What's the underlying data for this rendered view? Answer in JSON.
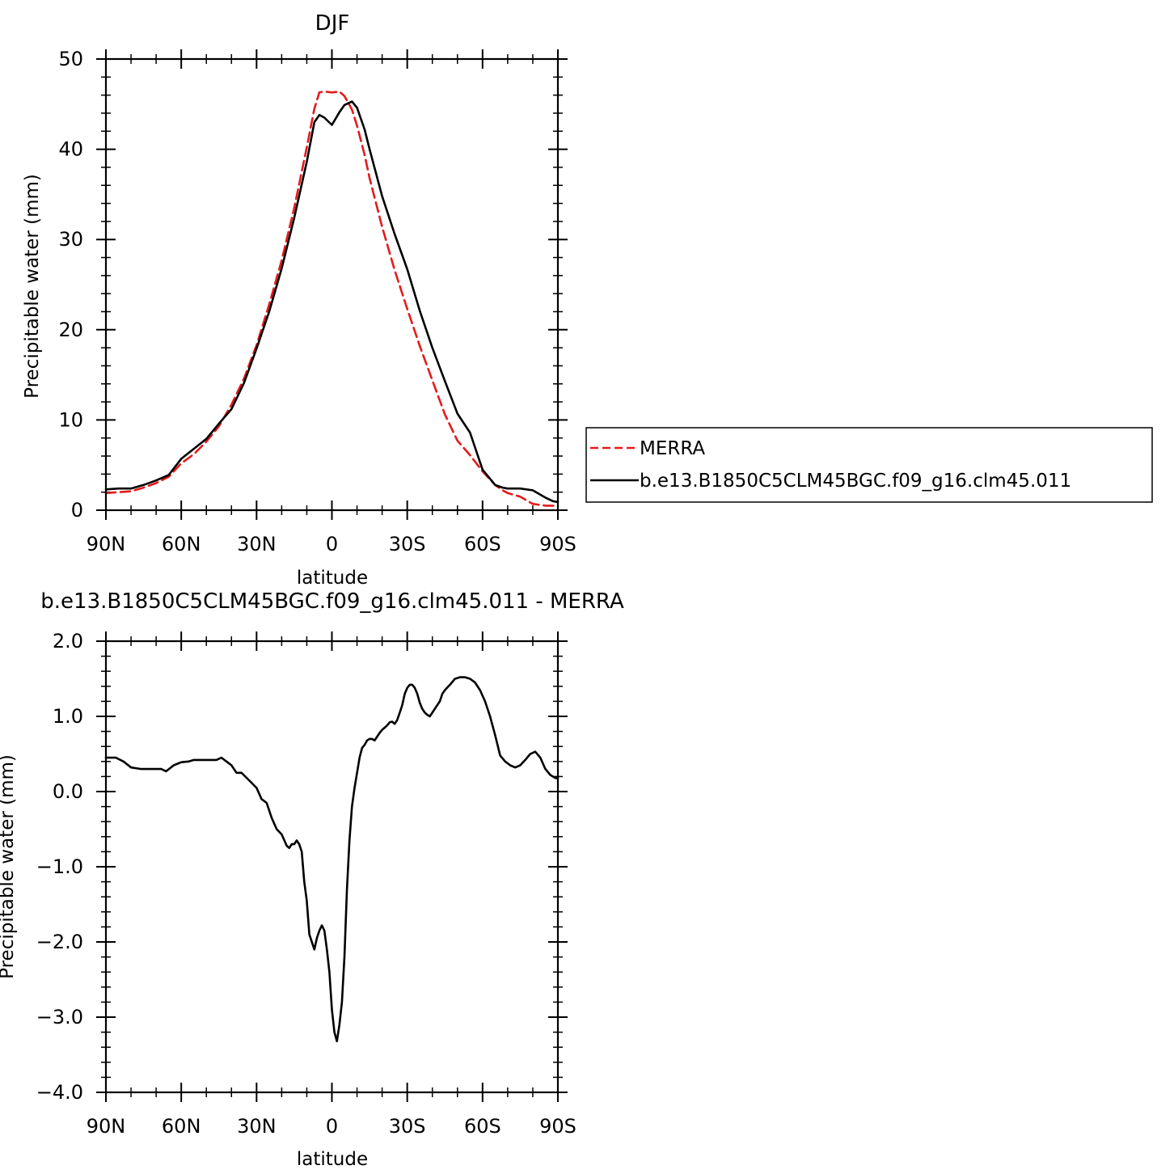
{
  "colors": {
    "merra": "#e41a1c",
    "model": "#000000",
    "axis": "#000000",
    "background": "#ffffff"
  },
  "chart_data": [
    {
      "type": "line",
      "title": "DJF",
      "xlabel": "latitude",
      "ylabel": "Precipitable water (mm)",
      "xlim": [
        -90,
        90
      ],
      "ylim": [
        0,
        50
      ],
      "x_ticks": [
        -90,
        -60,
        -30,
        0,
        30,
        60,
        90
      ],
      "x_tick_labels": [
        "90N",
        "60N",
        "30N",
        "0",
        "30S",
        "60S",
        "90S"
      ],
      "y_ticks": [
        0,
        10,
        20,
        30,
        40,
        50
      ],
      "y_tick_labels": [
        "0",
        "10",
        "20",
        "30",
        "40",
        "50"
      ],
      "grid": false,
      "legend": {
        "position": "right",
        "entries": [
          "MERRA",
          "b.e13.B1850C5CLM45BGC.f09_g16.clm45.011"
        ]
      },
      "series": [
        {
          "name": "MERRA",
          "style": "dashed",
          "color": "#e41a1c",
          "x": [
            -90,
            -80,
            -75,
            -70,
            -65,
            -60,
            -55,
            -50,
            -45,
            -40,
            -35,
            -30,
            -25,
            -20,
            -15,
            -10,
            -7,
            -5,
            -3,
            0,
            3,
            5,
            8,
            10,
            13,
            15,
            20,
            25,
            30,
            35,
            40,
            45,
            50,
            55,
            60,
            65,
            68,
            70,
            75,
            80,
            85,
            88,
            90
          ],
          "y": [
            1.9,
            2.1,
            2.5,
            3.0,
            3.7,
            5.2,
            6.2,
            7.6,
            9.3,
            11.7,
            14.6,
            18.3,
            22.8,
            27.7,
            33.5,
            40.2,
            44.5,
            46.3,
            46.4,
            46.3,
            46.4,
            45.9,
            44.4,
            42.6,
            39.4,
            36.8,
            31.4,
            26.6,
            22.3,
            18.2,
            14.4,
            10.6,
            7.7,
            6.1,
            4.3,
            2.8,
            2.2,
            1.9,
            1.5,
            0.7,
            0.5,
            0.5,
            0.5
          ]
        },
        {
          "name": "b.e13.B1850C5CLM45BGC.f09_g16.clm45.011",
          "style": "solid",
          "color": "#000000",
          "x": [
            -90,
            -85,
            -80,
            -75,
            -70,
            -65,
            -60,
            -55,
            -50,
            -45,
            -40,
            -35,
            -30,
            -25,
            -20,
            -15,
            -10,
            -7,
            -5,
            -3,
            0,
            3,
            5,
            8,
            10,
            13,
            15,
            20,
            25,
            30,
            35,
            40,
            45,
            50,
            55,
            60,
            65,
            68,
            70,
            75,
            80,
            85,
            88,
            90
          ],
          "y": [
            2.3,
            2.4,
            2.4,
            2.8,
            3.3,
            3.9,
            5.7,
            6.8,
            7.9,
            9.6,
            11.2,
            14.1,
            17.9,
            22.0,
            26.8,
            32.4,
            38.6,
            43.0,
            43.8,
            43.5,
            42.7,
            44.1,
            44.9,
            45.3,
            44.6,
            42.2,
            40.0,
            34.8,
            30.6,
            26.7,
            22.1,
            18.0,
            14.3,
            10.7,
            8.6,
            4.5,
            2.8,
            2.5,
            2.4,
            2.4,
            2.2,
            1.4,
            1.0,
            0.9
          ]
        }
      ]
    },
    {
      "type": "line",
      "title": "b.e13.B1850C5CLM45BGC.f09_g16.clm45.011 - MERRA",
      "xlabel": "latitude",
      "ylabel": "Precipitable water (mm)",
      "xlim": [
        -90,
        90
      ],
      "ylim": [
        -4,
        2
      ],
      "x_ticks": [
        -90,
        -60,
        -30,
        0,
        30,
        60,
        90
      ],
      "x_tick_labels": [
        "90N",
        "60N",
        "30N",
        "0",
        "30S",
        "60S",
        "90S"
      ],
      "y_ticks": [
        -4,
        -3,
        -2,
        -1,
        0,
        1,
        2
      ],
      "y_tick_labels": [
        "−4.0",
        "−3.0",
        "−2.0",
        "−1.0",
        "0.0",
        "1.0",
        "2.0"
      ],
      "grid": false,
      "series": [
        {
          "style": "solid",
          "color": "#000000",
          "x": [
            -90,
            -86,
            -83,
            -80,
            -76,
            -72,
            -68,
            -66,
            -63,
            -60,
            -57,
            -55,
            -50,
            -46,
            -44,
            -42,
            -40,
            -38,
            -36,
            -33,
            -30,
            -28,
            -26,
            -24,
            -22,
            -20,
            -18,
            -17,
            -16,
            -15,
            -14,
            -13,
            -12,
            -11,
            -10,
            -9,
            -8,
            -7,
            -6,
            -5,
            -4,
            -3,
            -2,
            -1,
            0,
            1,
            2,
            3,
            4,
            5,
            6,
            7,
            8,
            9,
            10,
            11,
            12,
            13,
            14,
            15,
            16,
            17,
            18,
            19,
            20,
            21,
            22,
            23,
            24,
            25,
            26,
            27,
            28,
            29,
            30,
            31,
            32,
            33,
            34,
            35,
            36,
            37,
            38,
            39,
            40,
            41,
            42,
            43,
            44,
            45,
            47,
            49,
            51,
            53,
            55,
            57,
            59,
            61,
            63,
            65,
            67,
            69,
            71,
            73,
            75,
            77,
            79,
            81,
            83,
            85,
            87,
            89,
            90
          ],
          "y": [
            0.45,
            0.45,
            0.4,
            0.32,
            0.3,
            0.3,
            0.3,
            0.27,
            0.35,
            0.39,
            0.4,
            0.42,
            0.42,
            0.42,
            0.45,
            0.4,
            0.35,
            0.25,
            0.25,
            0.15,
            0.05,
            -0.1,
            -0.15,
            -0.35,
            -0.5,
            -0.57,
            -0.72,
            -0.75,
            -0.7,
            -0.7,
            -0.65,
            -0.7,
            -0.8,
            -1.2,
            -1.45,
            -1.9,
            -2.0,
            -2.1,
            -1.95,
            -1.85,
            -1.78,
            -1.85,
            -2.1,
            -2.4,
            -2.9,
            -3.2,
            -3.32,
            -3.1,
            -2.8,
            -2.2,
            -1.3,
            -0.65,
            -0.2,
            0.05,
            0.25,
            0.45,
            0.58,
            0.62,
            0.68,
            0.7,
            0.7,
            0.68,
            0.73,
            0.78,
            0.82,
            0.85,
            0.88,
            0.92,
            0.93,
            0.9,
            0.95,
            1.05,
            1.15,
            1.3,
            1.38,
            1.42,
            1.42,
            1.38,
            1.3,
            1.18,
            1.1,
            1.05,
            1.02,
            1.0,
            1.05,
            1.1,
            1.15,
            1.2,
            1.3,
            1.35,
            1.42,
            1.5,
            1.52,
            1.52,
            1.5,
            1.45,
            1.35,
            1.2,
            1.0,
            0.75,
            0.48,
            0.4,
            0.35,
            0.32,
            0.35,
            0.42,
            0.5,
            0.53,
            0.45,
            0.3,
            0.22,
            0.18,
            0.18
          ]
        }
      ]
    }
  ]
}
